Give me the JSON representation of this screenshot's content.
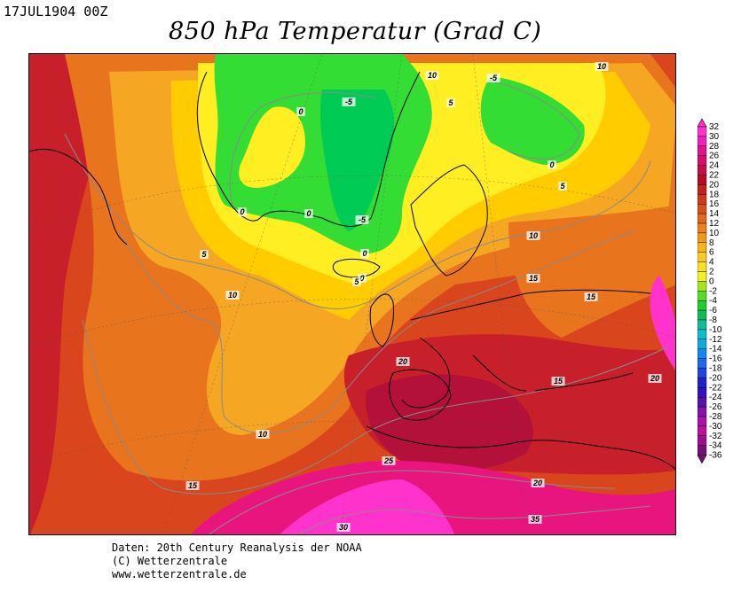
{
  "header": {
    "date": "17JUL1904 00Z",
    "title": "850 hPa Temperatur (Grad C)"
  },
  "map": {
    "contour_labels": [
      "-5",
      "0",
      "-5",
      "0",
      "0",
      "-5",
      "0",
      "0",
      "0",
      "5",
      "5",
      "5",
      "5",
      "10",
      "10",
      "10",
      "10",
      "10",
      "15",
      "15",
      "15",
      "15",
      "20",
      "20",
      "20",
      "25",
      "30",
      "35"
    ],
    "colors": {
      "cold_green": "#33dd33",
      "bright_green": "#00cc55",
      "yellow": "#ffee22",
      "light_orange": "#ffcc00",
      "orange": "#f5a623",
      "dark_orange": "#e8741e",
      "red_orange": "#d9451c",
      "red": "#c8202b",
      "crimson": "#b3103a",
      "magenta": "#e8157f",
      "pink": "#ff33cc"
    }
  },
  "colorbar": {
    "labels": [
      "32",
      "30",
      "28",
      "26",
      "24",
      "22",
      "20",
      "18",
      "16",
      "14",
      "12",
      "10",
      "8",
      "6",
      "4",
      "2",
      "0",
      "-2",
      "-4",
      "-6",
      "-8",
      "-10",
      "-12",
      "-14",
      "-16",
      "-18",
      "-20",
      "-22",
      "-24",
      "-26",
      "-28",
      "-30",
      "-32",
      "-34",
      "-36"
    ],
    "colors": [
      "#ff33cc",
      "#ee22bb",
      "#e01490",
      "#d4106a",
      "#c70d48",
      "#b80b28",
      "#c2221f",
      "#cd3a1c",
      "#d8511b",
      "#e2691b",
      "#ea821c",
      "#f09a1a",
      "#f5b31a",
      "#f8cc1c",
      "#fadf22",
      "#f4f01e",
      "#a8e61c",
      "#55dd22",
      "#22cc33",
      "#11bb55",
      "#11bb99",
      "#11bbcc",
      "#11aadd",
      "#1188ee",
      "#2266ee",
      "#2244dd",
      "#2222cc",
      "#3311bb",
      "#5511aa",
      "#8811aa",
      "#aa11aa",
      "#bb1199",
      "#991188",
      "#771177"
    ]
  },
  "credits": {
    "line1": "Daten: 20th Century Reanalysis der NOAA",
    "line2": "(C) Wetterzentrale",
    "line3": "www.wetterzentrale.de"
  }
}
